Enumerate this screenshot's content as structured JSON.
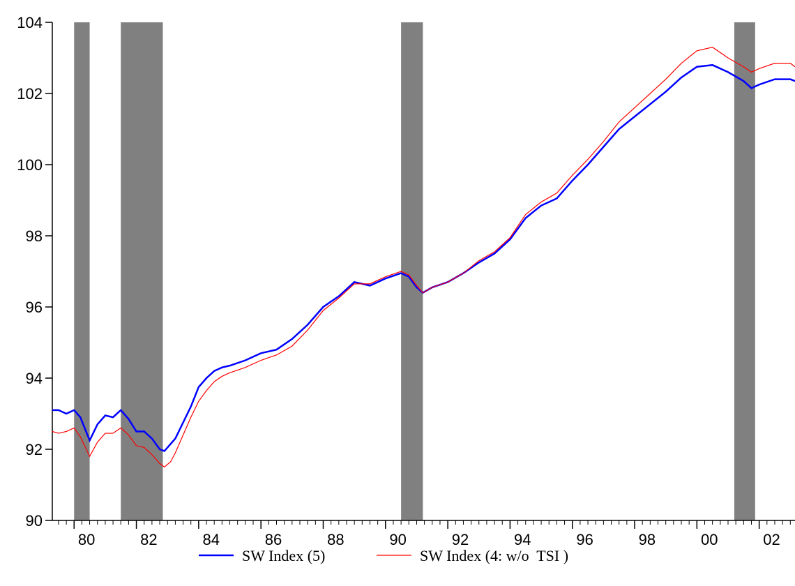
{
  "chart_data": {
    "type": "line",
    "x": [
      1979.3,
      1979.5,
      1979.75,
      1980.0,
      1980.2,
      1980.5,
      1980.75,
      1981.0,
      1981.25,
      1981.5,
      1981.75,
      1982.0,
      1982.25,
      1982.5,
      1982.75,
      1982.9,
      1983.1,
      1983.25,
      1983.5,
      1983.75,
      1984.0,
      1984.25,
      1984.5,
      1984.75,
      1985.0,
      1985.5,
      1986.0,
      1986.5,
      1987.0,
      1987.5,
      1988.0,
      1988.5,
      1989.0,
      1989.5,
      1990.0,
      1990.5,
      1990.75,
      1991.0,
      1991.2,
      1991.5,
      1992.0,
      1992.5,
      1993.0,
      1993.5,
      1994.0,
      1994.5,
      1995.0,
      1995.5,
      1996.0,
      1996.5,
      1997.0,
      1997.5,
      1998.0,
      1998.5,
      1999.0,
      1999.5,
      2000.0,
      2000.5,
      2001.0,
      2001.5,
      2001.75,
      2002.0,
      2002.5,
      2003.0,
      2003.15
    ],
    "series": [
      {
        "name": "SW Index (5)",
        "color": "#0000ff",
        "width": 2.5,
        "values": [
          93.1,
          93.1,
          93.0,
          93.1,
          92.9,
          92.25,
          92.7,
          92.95,
          92.9,
          93.1,
          92.85,
          92.5,
          92.5,
          92.3,
          92.0,
          91.95,
          92.15,
          92.3,
          92.75,
          93.2,
          93.75,
          94.0,
          94.2,
          94.3,
          94.35,
          94.5,
          94.7,
          94.8,
          95.1,
          95.5,
          96.0,
          96.3,
          96.7,
          96.6,
          96.8,
          96.95,
          96.85,
          96.55,
          96.4,
          96.55,
          96.7,
          96.95,
          97.25,
          97.5,
          97.9,
          98.5,
          98.85,
          99.05,
          99.55,
          100.0,
          100.5,
          101.0,
          101.35,
          101.7,
          102.05,
          102.45,
          102.75,
          102.8,
          102.6,
          102.35,
          102.15,
          102.25,
          102.4,
          102.4,
          102.35
        ]
      },
      {
        "name": "SW Index (4: w/o  TSI )",
        "color": "#ff0000",
        "width": 1.2,
        "values": [
          92.5,
          92.45,
          92.5,
          92.6,
          92.35,
          91.8,
          92.2,
          92.45,
          92.45,
          92.6,
          92.4,
          92.1,
          92.05,
          91.85,
          91.6,
          91.5,
          91.65,
          91.9,
          92.4,
          92.9,
          93.35,
          93.65,
          93.9,
          94.05,
          94.15,
          94.3,
          94.5,
          94.65,
          94.9,
          95.35,
          95.9,
          96.25,
          96.65,
          96.65,
          96.85,
          97.0,
          96.9,
          96.6,
          96.4,
          96.55,
          96.7,
          96.95,
          97.3,
          97.55,
          97.95,
          98.6,
          98.95,
          99.2,
          99.7,
          100.15,
          100.65,
          101.2,
          101.6,
          102.0,
          102.4,
          102.85,
          103.2,
          103.3,
          103.0,
          102.75,
          102.6,
          102.7,
          102.85,
          102.85,
          102.75
        ]
      }
    ],
    "recessions": [
      [
        1980.0,
        1980.5
      ],
      [
        1981.5,
        1982.85
      ],
      [
        1990.5,
        1991.2
      ],
      [
        2001.2,
        2001.87
      ]
    ],
    "recession_color": "#808080",
    "xlim": [
      1979.3,
      2003.15
    ],
    "xticks": [
      {
        "value": 1980,
        "label": "80"
      },
      {
        "value": 1982,
        "label": "82"
      },
      {
        "value": 1984,
        "label": "84"
      },
      {
        "value": 1986,
        "label": "86"
      },
      {
        "value": 1988,
        "label": "88"
      },
      {
        "value": 1990,
        "label": "90"
      },
      {
        "value": 1992,
        "label": "92"
      },
      {
        "value": 1994,
        "label": "94"
      },
      {
        "value": 1996,
        "label": "96"
      },
      {
        "value": 1998,
        "label": "98"
      },
      {
        "value": 2000,
        "label": "00"
      },
      {
        "value": 2002,
        "label": "02"
      }
    ],
    "ylim": [
      90,
      104
    ],
    "yticks": [
      90,
      92,
      94,
      96,
      98,
      100,
      102,
      104
    ]
  }
}
